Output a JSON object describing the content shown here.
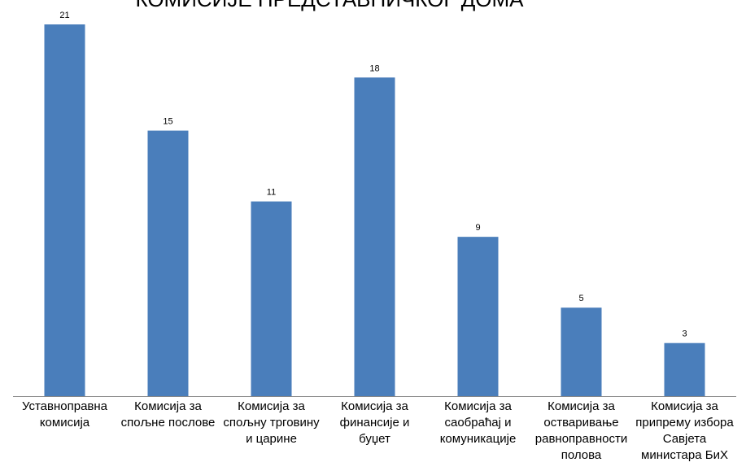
{
  "chart_data": {
    "type": "bar",
    "title": "КОМИСИЈЕ ПРЕДСТАВНИЧКОГ ДОМА",
    "categories": [
      "Уставноправна комисија",
      "Комисија за спољне послове",
      "Комисија за спољну трговину и царине",
      "Комисија за финансије и буџет",
      "Комисија за саобраћај и комуникације",
      "Комисија за остваривање равноправности полова",
      "Комисија за припрему избора Савјета министара БиХ"
    ],
    "values": [
      21,
      15,
      11,
      18,
      9,
      5,
      3
    ],
    "color": "#4a7ebb"
  }
}
